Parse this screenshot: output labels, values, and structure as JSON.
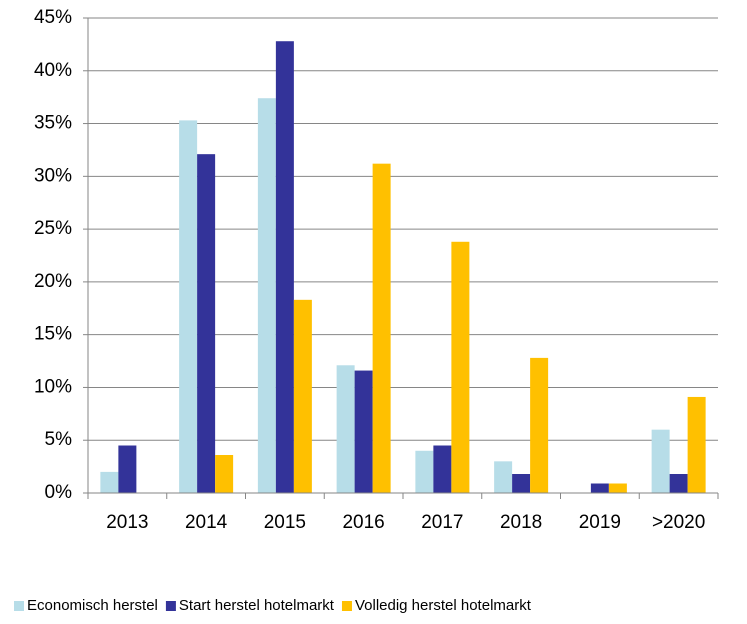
{
  "chart_data": {
    "type": "bar",
    "categories": [
      "2013",
      "2014",
      "2015",
      "2016",
      "2017",
      "2018",
      "2019",
      ">2020"
    ],
    "series": [
      {
        "name": "Economisch herstel",
        "color": "#b7dde8",
        "values": [
          2.0,
          35.3,
          37.4,
          12.1,
          4.0,
          3.0,
          0,
          6.0
        ]
      },
      {
        "name": "Start herstel hotelmarkt",
        "color": "#333399",
        "values": [
          4.5,
          32.1,
          42.8,
          11.6,
          4.5,
          1.8,
          0.9,
          1.8
        ]
      },
      {
        "name": "Volledig herstel hotelmarkt",
        "color": "#ffc000",
        "values": [
          0,
          3.6,
          18.3,
          31.2,
          23.8,
          12.8,
          0.9,
          9.1
        ]
      }
    ],
    "ylim": [
      0,
      45
    ],
    "yticks": [
      {
        "value": 0,
        "label": "0%"
      },
      {
        "value": 5,
        "label": "5%"
      },
      {
        "value": 10,
        "label": "10%"
      },
      {
        "value": 15,
        "label": "15%"
      },
      {
        "value": 20,
        "label": "20%"
      },
      {
        "value": 25,
        "label": "25%"
      },
      {
        "value": 30,
        "label": "30%"
      },
      {
        "value": 35,
        "label": "35%"
      },
      {
        "value": 40,
        "label": "40%"
      },
      {
        "value": 45,
        "label": "45%"
      }
    ],
    "grid": true,
    "legend": "bottom"
  }
}
